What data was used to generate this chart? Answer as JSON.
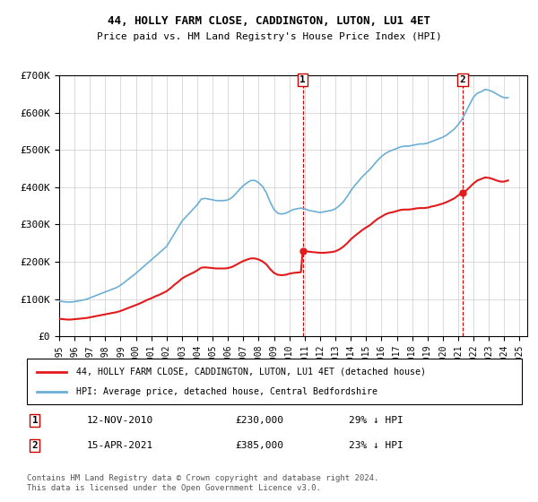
{
  "title": "44, HOLLY FARM CLOSE, CADDINGTON, LUTON, LU1 4ET",
  "subtitle": "Price paid vs. HM Land Registry's House Price Index (HPI)",
  "ylabel": "",
  "ylim": [
    0,
    700000
  ],
  "yticks": [
    0,
    100000,
    200000,
    300000,
    400000,
    500000,
    600000,
    700000
  ],
  "ytick_labels": [
    "£0",
    "£100K",
    "£200K",
    "£300K",
    "£400K",
    "£500K",
    "£600K",
    "£700K"
  ],
  "xlim_start": 1995.0,
  "xlim_end": 2025.5,
  "hpi_color": "#6baed6",
  "price_color": "#e31a1c",
  "transaction1_date": "12-NOV-2010",
  "transaction1_x": 2010.87,
  "transaction1_price": 230000,
  "transaction1_label": "29% ↓ HPI",
  "transaction2_date": "15-APR-2021",
  "transaction2_x": 2021.29,
  "transaction2_price": 385000,
  "transaction2_label": "23% ↓ HPI",
  "legend_line1": "44, HOLLY FARM CLOSE, CADDINGTON, LUTON, LU1 4ET (detached house)",
  "legend_line2": "HPI: Average price, detached house, Central Bedfordshire",
  "footer": "Contains HM Land Registry data © Crown copyright and database right 2024.\nThis data is licensed under the Open Government Licence v3.0.",
  "background_color": "#ffffff",
  "grid_color": "#cccccc",
  "hpi_data": {
    "years": [
      1995.0,
      1995.25,
      1995.5,
      1995.75,
      1996.0,
      1996.25,
      1996.5,
      1996.75,
      1997.0,
      1997.25,
      1997.5,
      1997.75,
      1998.0,
      1998.25,
      1998.5,
      1998.75,
      1999.0,
      1999.25,
      1999.5,
      1999.75,
      2000.0,
      2000.25,
      2000.5,
      2000.75,
      2001.0,
      2001.25,
      2001.5,
      2001.75,
      2002.0,
      2002.25,
      2002.5,
      2002.75,
      2003.0,
      2003.25,
      2003.5,
      2003.75,
      2004.0,
      2004.25,
      2004.5,
      2004.75,
      2005.0,
      2005.25,
      2005.5,
      2005.75,
      2006.0,
      2006.25,
      2006.5,
      2006.75,
      2007.0,
      2007.25,
      2007.5,
      2007.75,
      2008.0,
      2008.25,
      2008.5,
      2008.75,
      2009.0,
      2009.25,
      2009.5,
      2009.75,
      2010.0,
      2010.25,
      2010.5,
      2010.75,
      2011.0,
      2011.25,
      2011.5,
      2011.75,
      2012.0,
      2012.25,
      2012.5,
      2012.75,
      2013.0,
      2013.25,
      2013.5,
      2013.75,
      2014.0,
      2014.25,
      2014.5,
      2014.75,
      2015.0,
      2015.25,
      2015.5,
      2015.75,
      2016.0,
      2016.25,
      2016.5,
      2016.75,
      2017.0,
      2017.25,
      2017.5,
      2017.75,
      2018.0,
      2018.25,
      2018.5,
      2018.75,
      2019.0,
      2019.25,
      2019.5,
      2019.75,
      2020.0,
      2020.25,
      2020.5,
      2020.75,
      2021.0,
      2021.25,
      2021.5,
      2021.75,
      2022.0,
      2022.25,
      2022.5,
      2022.75,
      2023.0,
      2023.25,
      2023.5,
      2023.75,
      2024.0,
      2024.25
    ],
    "values": [
      95000,
      93000,
      92000,
      92000,
      93000,
      95000,
      97000,
      99000,
      103000,
      107000,
      111000,
      115000,
      119000,
      123000,
      127000,
      131000,
      137000,
      145000,
      153000,
      161000,
      169000,
      178000,
      187000,
      196000,
      205000,
      214000,
      223000,
      232000,
      241000,
      258000,
      275000,
      292000,
      309000,
      320000,
      331000,
      342000,
      353000,
      368000,
      370000,
      368000,
      366000,
      364000,
      364000,
      364000,
      366000,
      372000,
      382000,
      394000,
      404000,
      412000,
      418000,
      418000,
      412000,
      402000,
      385000,
      360000,
      340000,
      330000,
      328000,
      330000,
      335000,
      340000,
      342000,
      344000,
      342000,
      338000,
      336000,
      334000,
      332000,
      334000,
      336000,
      338000,
      342000,
      350000,
      360000,
      374000,
      390000,
      404000,
      416000,
      428000,
      438000,
      448000,
      460000,
      472000,
      482000,
      490000,
      496000,
      500000,
      504000,
      508000,
      510000,
      510000,
      512000,
      514000,
      516000,
      516000,
      518000,
      522000,
      526000,
      530000,
      534000,
      540000,
      548000,
      556000,
      568000,
      582000,
      602000,
      622000,
      642000,
      652000,
      656000,
      662000,
      660000,
      656000,
      650000,
      644000,
      640000,
      640000
    ]
  },
  "price_paid_data": {
    "years": [
      1995.0,
      1995.25,
      1995.5,
      1995.75,
      1996.0,
      1996.25,
      1996.5,
      1996.75,
      1997.0,
      1997.25,
      1997.5,
      1997.75,
      1998.0,
      1998.25,
      1998.5,
      1998.75,
      1999.0,
      1999.25,
      1999.5,
      1999.75,
      2000.0,
      2000.25,
      2000.5,
      2000.75,
      2001.0,
      2001.25,
      2001.5,
      2001.75,
      2002.0,
      2002.25,
      2002.5,
      2002.75,
      2003.0,
      2003.25,
      2003.5,
      2003.75,
      2004.0,
      2004.25,
      2004.5,
      2004.75,
      2005.0,
      2005.25,
      2005.5,
      2005.75,
      2006.0,
      2006.25,
      2006.5,
      2006.75,
      2007.0,
      2007.25,
      2007.5,
      2007.75,
      2008.0,
      2008.25,
      2008.5,
      2008.75,
      2009.0,
      2009.25,
      2009.5,
      2009.75,
      2010.0,
      2010.25,
      2010.5,
      2010.75,
      2010.87,
      2011.0,
      2011.25,
      2011.5,
      2011.75,
      2012.0,
      2012.25,
      2012.5,
      2012.75,
      2013.0,
      2013.25,
      2013.5,
      2013.75,
      2014.0,
      2014.25,
      2014.5,
      2014.75,
      2015.0,
      2015.25,
      2015.5,
      2015.75,
      2016.0,
      2016.25,
      2016.5,
      2016.75,
      2017.0,
      2017.25,
      2017.5,
      2017.75,
      2018.0,
      2018.25,
      2018.5,
      2018.75,
      2019.0,
      2019.25,
      2019.5,
      2019.75,
      2020.0,
      2020.25,
      2020.5,
      2020.75,
      2021.0,
      2021.29,
      2021.5,
      2021.75,
      2022.0,
      2022.25,
      2022.5,
      2022.75,
      2023.0,
      2023.25,
      2023.5,
      2023.75,
      2024.0,
      2024.25
    ],
    "values": [
      47000,
      46000,
      45000,
      45000,
      46000,
      47000,
      48000,
      49000,
      51000,
      53000,
      55000,
      57000,
      59000,
      61000,
      63000,
      65000,
      68000,
      72000,
      76000,
      80000,
      84000,
      88000,
      93000,
      98000,
      102000,
      107000,
      111000,
      116000,
      121000,
      129000,
      138000,
      146000,
      155000,
      161000,
      166000,
      171000,
      177000,
      184000,
      185000,
      184000,
      183000,
      182000,
      182000,
      182000,
      183000,
      186000,
      191000,
      197000,
      202000,
      206000,
      209000,
      209000,
      206000,
      201000,
      193000,
      180000,
      170000,
      165000,
      164000,
      165000,
      168000,
      170000,
      171000,
      172000,
      230000,
      229000,
      227000,
      226000,
      225000,
      224000,
      224000,
      225000,
      226000,
      228000,
      233000,
      240000,
      249000,
      260000,
      269000,
      277000,
      285000,
      292000,
      298000,
      307000,
      315000,
      321000,
      327000,
      331000,
      333000,
      336000,
      339000,
      340000,
      340000,
      341000,
      343000,
      344000,
      344000,
      345000,
      348000,
      350000,
      353000,
      356000,
      360000,
      365000,
      370000,
      378000,
      385000,
      390000,
      400000,
      410000,
      418000,
      422000,
      426000,
      425000,
      422000,
      418000,
      415000,
      415000,
      418000
    ]
  }
}
